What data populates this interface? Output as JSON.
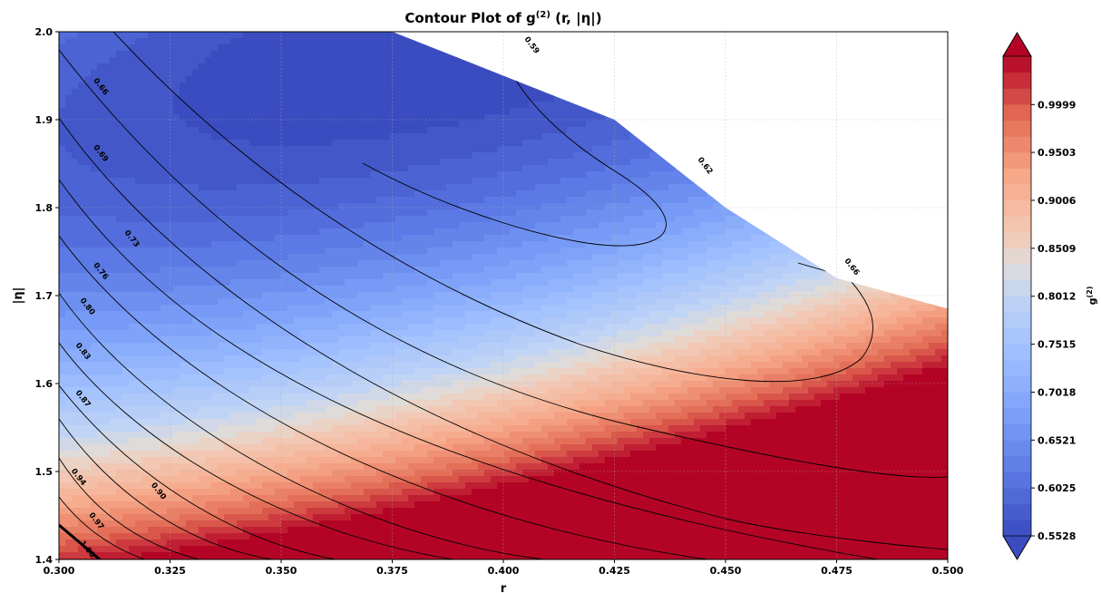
{
  "chart_data": {
    "type": "contour",
    "title_main": "Contour Plot of g",
    "title_sup": "(2)",
    "title_tail": " (r, |η|)",
    "xlabel": "r",
    "ylabel": "|η|",
    "colorbar_label_main": "g",
    "colorbar_label_sup": "(2)",
    "xlim": [
      0.3,
      0.5
    ],
    "ylim": [
      1.4,
      2.0
    ],
    "x_ticks": [
      "0.300",
      "0.325",
      "0.350",
      "0.375",
      "0.400",
      "0.425",
      "0.450",
      "0.475",
      "0.500"
    ],
    "y_ticks": [
      "1.4",
      "1.5",
      "1.6",
      "1.7",
      "1.8",
      "1.9",
      "2.0"
    ],
    "colorbar_ticks": [
      "0.5528",
      "0.6025",
      "0.6521",
      "0.7018",
      "0.7515",
      "0.8012",
      "0.8509",
      "0.9006",
      "0.9503",
      "0.9999"
    ],
    "colorbar_range": [
      0.5528,
      1.05
    ],
    "colormap": "coolwarm",
    "grid": true,
    "valid_region_boundary": [
      {
        "r": 0.375,
        "eta": 2.0
      },
      {
        "r": 0.425,
        "eta": 1.9
      },
      {
        "r": 0.45,
        "eta": 1.8
      },
      {
        "r": 0.475,
        "eta": 1.72
      },
      {
        "r": 0.5,
        "eta": 1.685
      }
    ],
    "minimum": {
      "r": 0.39,
      "eta": 1.99,
      "value": 0.5528
    },
    "contour_labels": [
      {
        "text": "0.59",
        "r": 0.4065,
        "eta": 1.985
      },
      {
        "text": "0.62",
        "r": 0.4455,
        "eta": 1.848
      },
      {
        "text": "0.66",
        "r": 0.4785,
        "eta": 1.733
      },
      {
        "text": "0.66",
        "r": 0.3095,
        "eta": 1.938
      },
      {
        "text": "0.69",
        "r": 0.3095,
        "eta": 1.862
      },
      {
        "text": "0.73",
        "r": 0.3165,
        "eta": 1.765
      },
      {
        "text": "0.76",
        "r": 0.3095,
        "eta": 1.728
      },
      {
        "text": "0.80",
        "r": 0.3065,
        "eta": 1.688
      },
      {
        "text": "0.83",
        "r": 0.3055,
        "eta": 1.637
      },
      {
        "text": "0.87",
        "r": 0.3055,
        "eta": 1.583
      },
      {
        "text": "0.94",
        "r": 0.3045,
        "eta": 1.494
      },
      {
        "text": "0.90",
        "r": 0.3225,
        "eta": 1.478
      },
      {
        "text": "0.97",
        "r": 0.3085,
        "eta": 1.444
      },
      {
        "text": "1.00",
        "r": 0.3065,
        "eta": 1.412
      }
    ]
  }
}
